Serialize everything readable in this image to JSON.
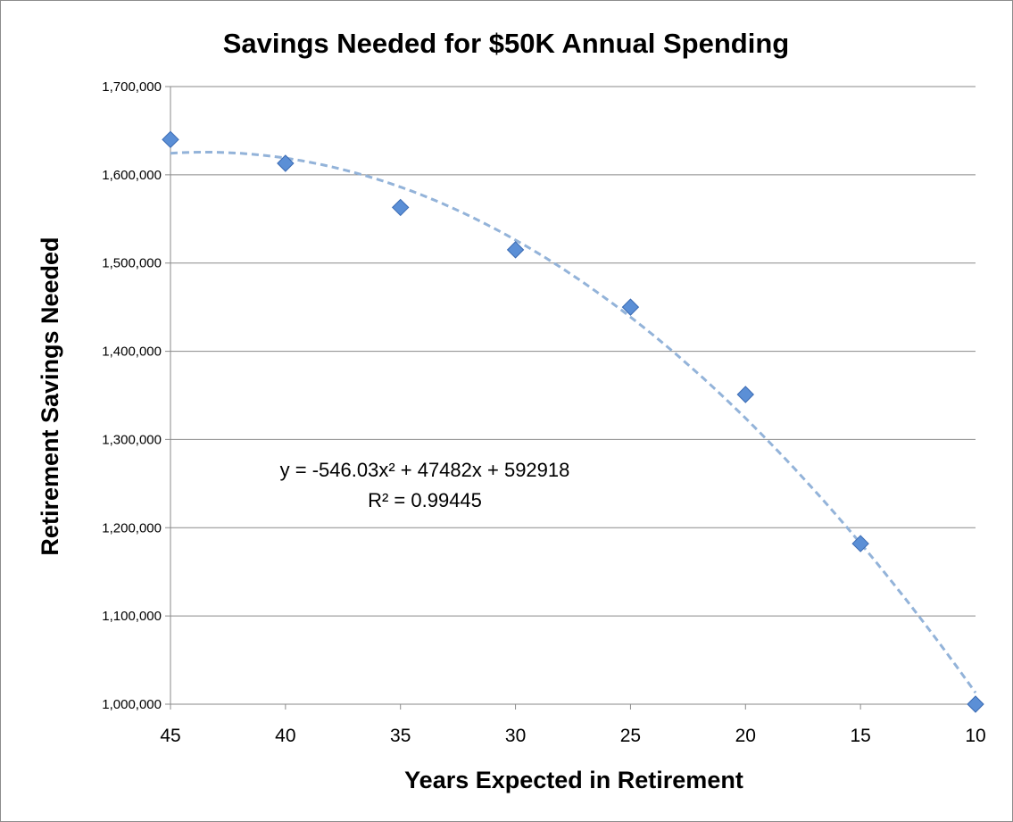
{
  "chart_data": {
    "type": "scatter",
    "title": "Savings Needed for $50K Annual Spending",
    "xlabel": "Years Expected in Retirement",
    "ylabel": "Retirement Savings Needed",
    "x_reversed": true,
    "xlim": [
      45,
      10
    ],
    "ylim": [
      1000000,
      1700000
    ],
    "x_ticks": [
      "45",
      "40",
      "35",
      "30",
      "25",
      "20",
      "15",
      "10"
    ],
    "x_tick_values": [
      45,
      40,
      35,
      30,
      25,
      20,
      15,
      10
    ],
    "y_ticks": [
      "1,000,000",
      "1,100,000",
      "1,200,000",
      "1,300,000",
      "1,400,000",
      "1,500,000",
      "1,600,000",
      "1,700,000"
    ],
    "y_tick_values": [
      1000000,
      1100000,
      1200000,
      1300000,
      1400000,
      1500000,
      1600000,
      1700000
    ],
    "grid": "horizontal",
    "series": [
      {
        "x": [
          45,
          40,
          35,
          30,
          25,
          20,
          15,
          10
        ],
        "y": [
          1640000,
          1613000,
          1563000,
          1515000,
          1450000,
          1351000,
          1182000,
          1000000
        ],
        "color": "#5b8fd6",
        "marker": "diamond"
      }
    ],
    "trendline": {
      "type": "polynomial",
      "order": 2,
      "color": "#93b3d9",
      "style": "dashed",
      "equation_text": "y = -546.03x² + 47482x + 592918",
      "r2_text": "R² = 0.99445"
    }
  }
}
